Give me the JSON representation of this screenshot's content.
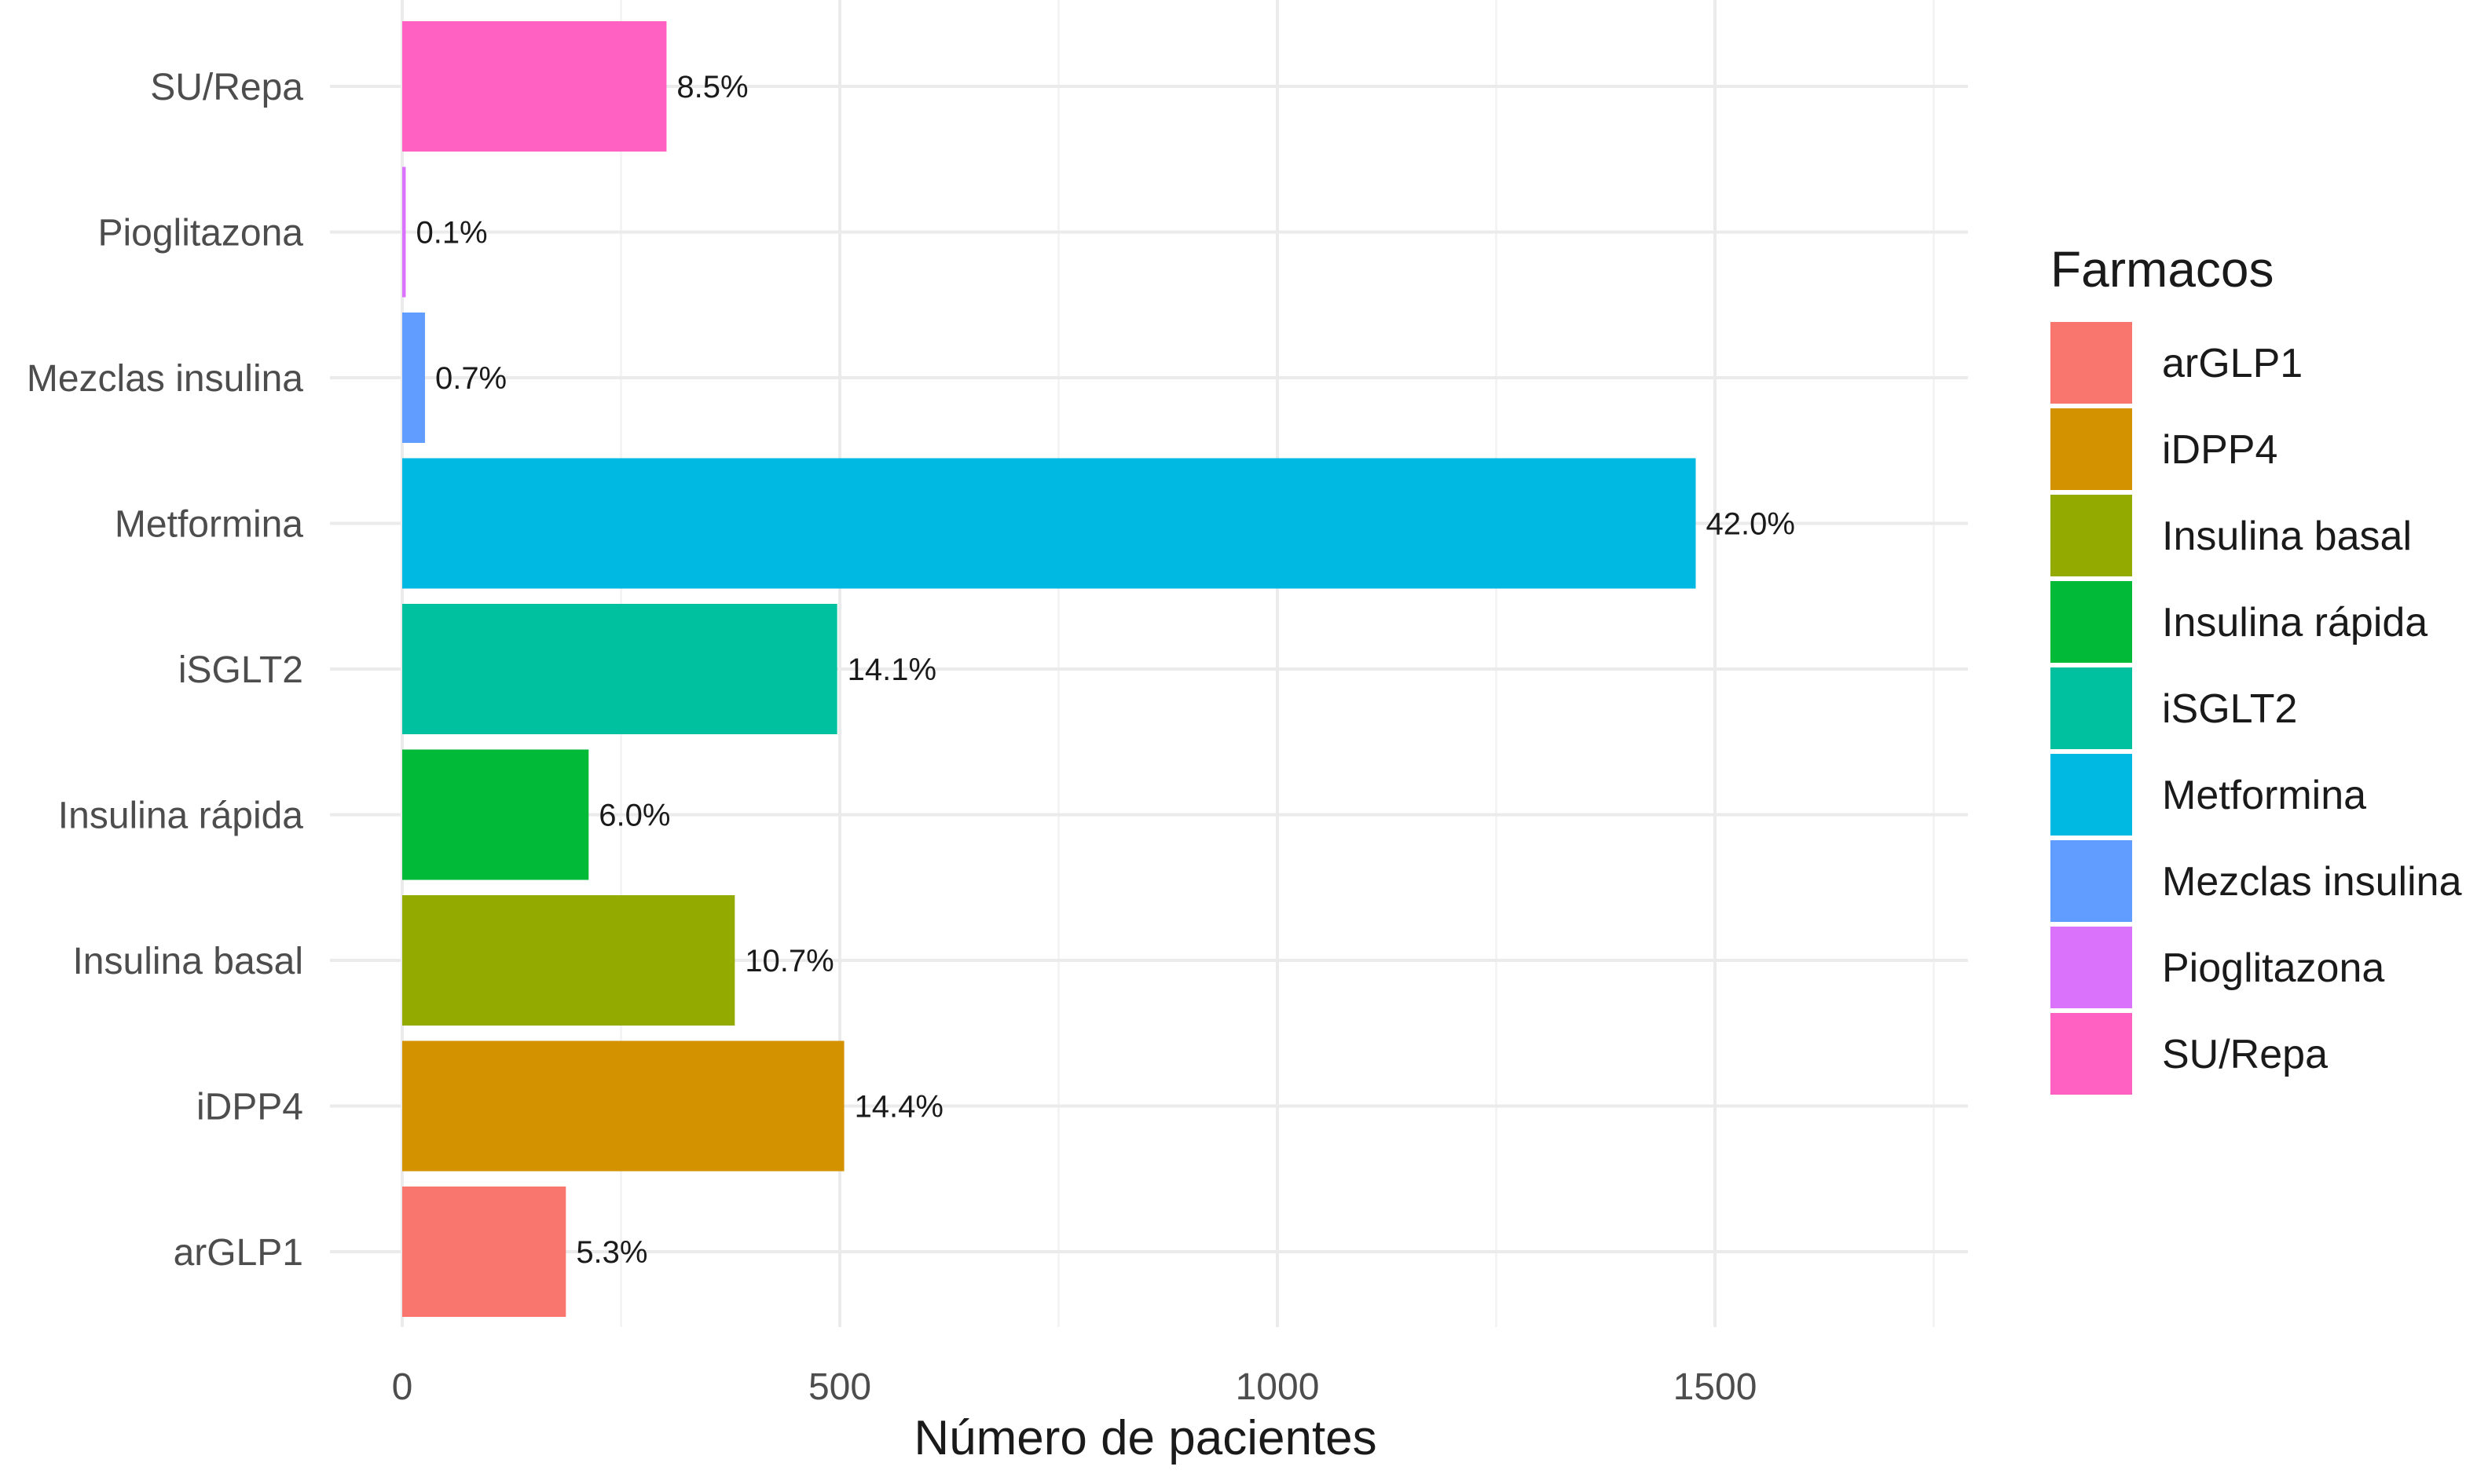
{
  "chart_data": {
    "type": "bar",
    "orientation": "horizontal",
    "xlabel": "Número de pacientes",
    "ylabel": "",
    "xlim": [
      0,
      1760
    ],
    "x_ticks": [
      0,
      500,
      1000,
      1500
    ],
    "grid": true,
    "legend_title": "Farmacos",
    "legend_position": "right",
    "categories": [
      "arGLP1",
      "iDPP4",
      "Insulina basal",
      "Insulina rápida",
      "iSGLT2",
      "Metformina",
      "Mezclas insulina",
      "Pioglitazona",
      "SU/Repa"
    ],
    "values": [
      187,
      505,
      380,
      213,
      497,
      1478,
      26,
      4,
      302
    ],
    "labels": [
      "5.3%",
      "14.4%",
      "10.7%",
      "6.0%",
      "14.1%",
      "42.0%",
      "0.7%",
      "0.1%",
      "8.5%"
    ],
    "colors": [
      "#F8766D",
      "#D39200",
      "#93AA00",
      "#00BA38",
      "#00C19F",
      "#00B9E3",
      "#619CFF",
      "#DB72FB",
      "#FF61C3"
    ]
  }
}
